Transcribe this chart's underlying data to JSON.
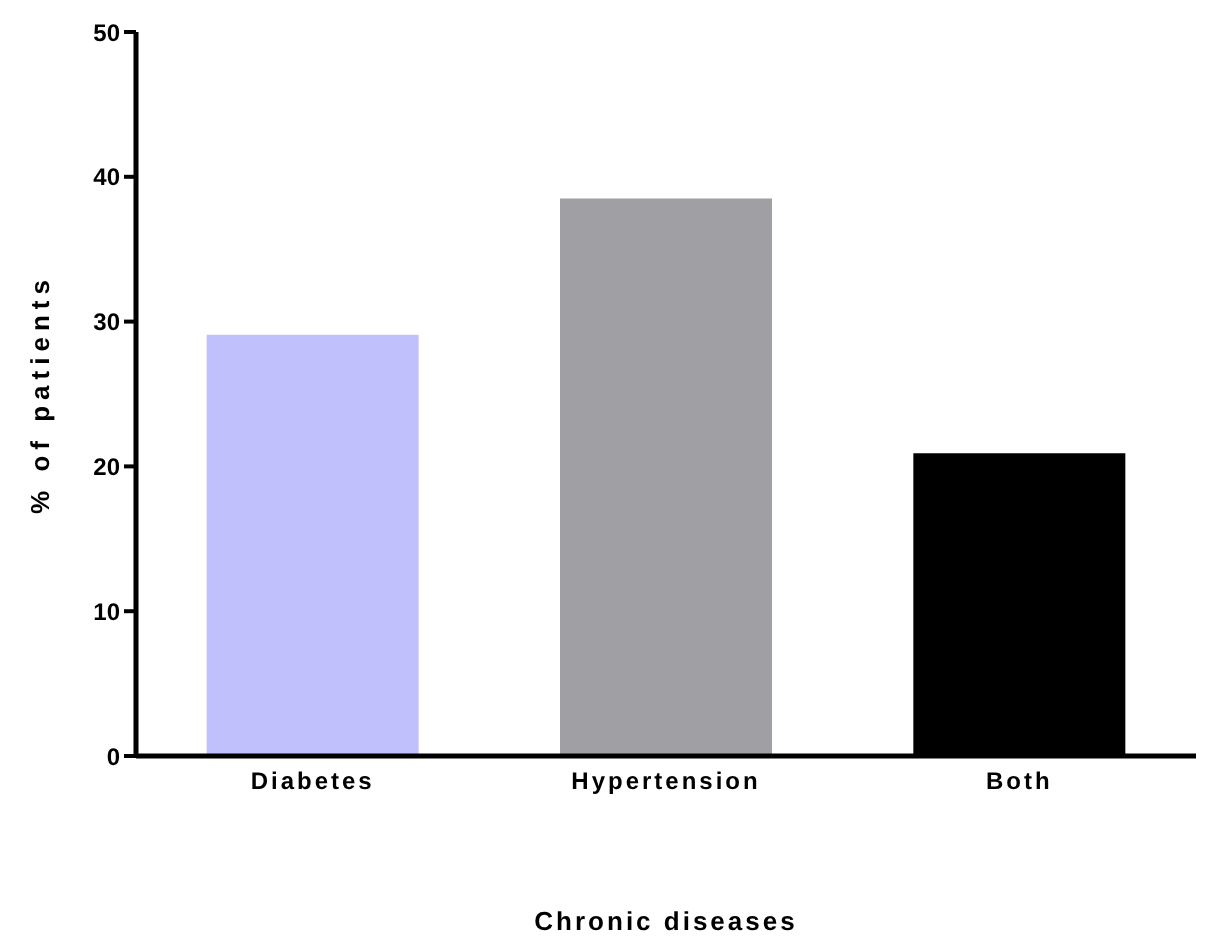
{
  "chart_data": {
    "type": "bar",
    "xlabel": "Chronic diseases",
    "ylabel": "% of patients",
    "categories": [
      "Diabetes",
      "Hypertension",
      "Both"
    ],
    "values": [
      29.1,
      38.5,
      20.9
    ],
    "colors": [
      "#c0c0fc",
      "#a0a0a4",
      "#000000"
    ],
    "ylim": [
      0,
      50
    ],
    "yticks": [
      0,
      10,
      20,
      30,
      40,
      50
    ],
    "grid": false,
    "legend": false
  }
}
